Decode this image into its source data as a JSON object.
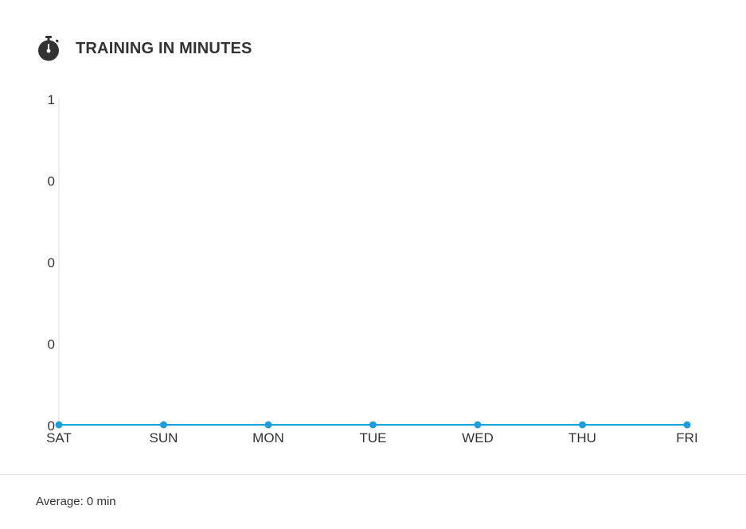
{
  "header": {
    "title": "TRAINING IN MINUTES",
    "icon": "stopwatch-icon"
  },
  "chart_data": {
    "type": "line",
    "categories": [
      "SAT",
      "SUN",
      "MON",
      "TUE",
      "WED",
      "THU",
      "FRI"
    ],
    "series": [
      {
        "values": [
          0,
          0,
          0,
          0,
          0,
          0,
          0
        ]
      }
    ],
    "ytick_labels": [
      "1",
      "0",
      "0",
      "0",
      "0"
    ],
    "ylim": [
      0,
      1
    ],
    "grid": false,
    "line_color": "#1a9fde",
    "title": "",
    "xlabel": "",
    "ylabel": ""
  },
  "footer": {
    "average_text": "Average: 0 min"
  }
}
